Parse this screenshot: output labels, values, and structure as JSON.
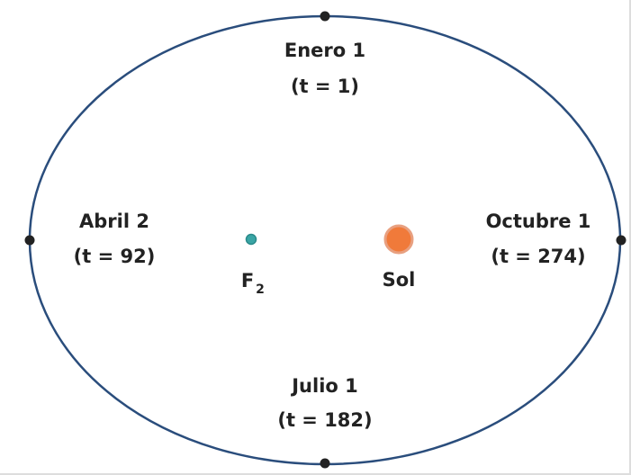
{
  "points": [
    {
      "date": "Enero 1",
      "time": "(t = 1)"
    },
    {
      "date": "Abril 2",
      "time": "(t = 92)"
    },
    {
      "date": "Julio 1",
      "time": "(t = 182)"
    },
    {
      "date": "Octubre 1",
      "time": "(t = 274)"
    }
  ],
  "foci": [
    {
      "label": "F",
      "subscript": "2"
    },
    {
      "label": "Sol"
    }
  ]
}
